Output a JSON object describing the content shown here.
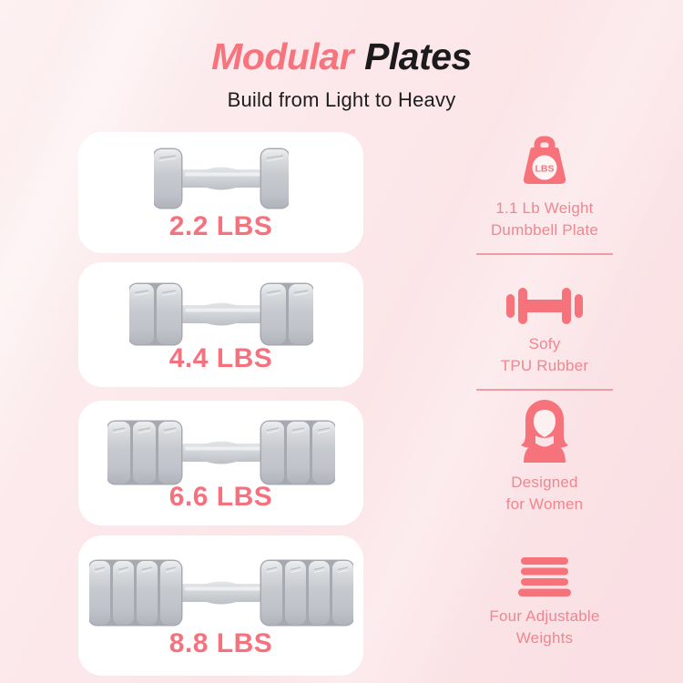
{
  "header": {
    "title_accent": "Modular",
    "title_rest": "Plates",
    "subtitle": "Build from Light to Heavy"
  },
  "cards": [
    {
      "label": "2.2 LBS",
      "plates_per_side": 1
    },
    {
      "label": "4.4 LBS",
      "plates_per_side": 2
    },
    {
      "label": "6.6 LBS",
      "plates_per_side": 3
    },
    {
      "label": "8.8 LBS",
      "plates_per_side": 4
    }
  ],
  "features": [
    {
      "icon": "weight-lbs-icon",
      "icon_label": "LBS",
      "line1": "1.1 Lb Weight",
      "line2": "Dumbbell Plate"
    },
    {
      "icon": "dumbbell-icon",
      "line1": "Sofy",
      "line2": "TPU Rubber"
    },
    {
      "icon": "woman-icon",
      "line1": "Designed",
      "line2": "for Women"
    },
    {
      "icon": "stacked-weights-icon",
      "line1": "Four Adjustable",
      "line2": "Weights"
    }
  ],
  "colors": {
    "accent_pink": "#f7747e",
    "title_black": "#1b1b1d",
    "weight_label_pink": "#f4717d",
    "caption_pink": "#ee8790",
    "divider_pink": "#f19aa1",
    "card_background": "#ffffff",
    "plate_gray": "#c6c9ce",
    "page_background": "#fce8ea"
  }
}
